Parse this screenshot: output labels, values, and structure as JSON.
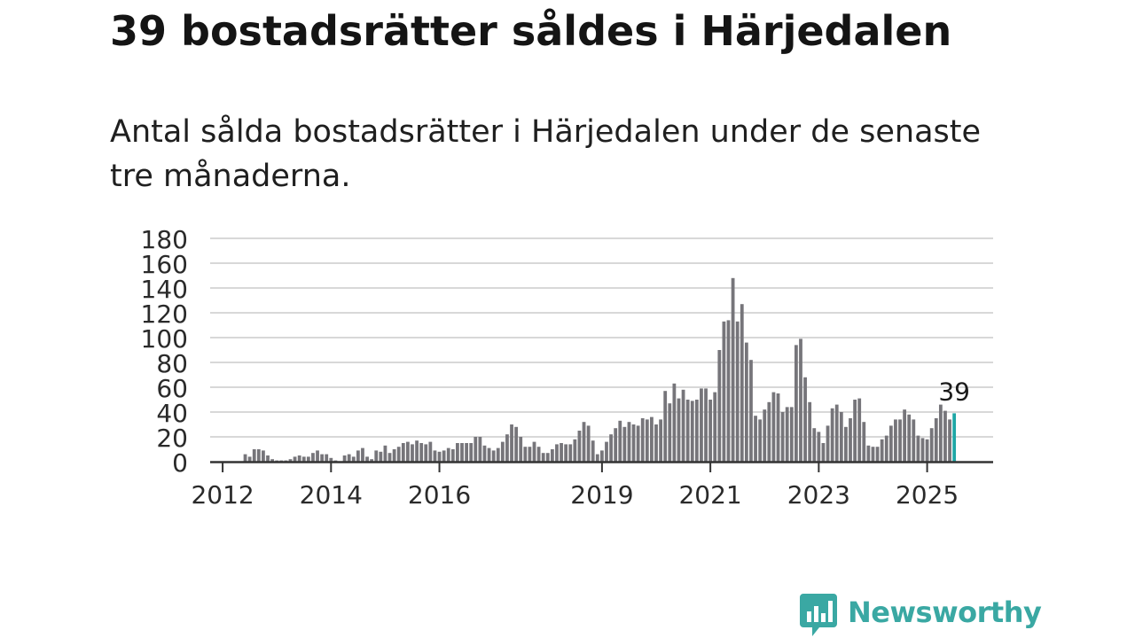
{
  "title": "39 bostadsrätter såldes i Härjedalen",
  "subtitle": "Antal sålda bostadsrätter i Härjedalen under de senaste tre månaderna.",
  "logo": {
    "text": "Newsworthy",
    "icon": "newsworthy-logo-icon"
  },
  "colors": {
    "bar": "#76757a",
    "highlight": "#1ea7a6",
    "grid": "#d8d8d8",
    "axis": "#333333",
    "brand": "#3aa8a3"
  },
  "chart_data": {
    "type": "bar",
    "ylim": [
      0,
      180
    ],
    "yticks": [
      "0",
      "20",
      "40",
      "60",
      "80",
      "100",
      "120",
      "140",
      "160",
      "180"
    ],
    "xticks": [
      "2012",
      "2014",
      "2016",
      "2019",
      "2021",
      "2023",
      "2025"
    ],
    "grid": true,
    "start": "2011-11",
    "highlight_label": "39",
    "values": [
      0,
      0,
      0,
      0,
      0,
      0,
      0,
      6,
      4,
      10,
      10,
      9,
      5,
      2,
      1,
      1,
      1,
      2,
      4,
      5,
      4,
      4,
      7,
      9,
      6,
      6,
      3,
      1,
      0,
      5,
      6,
      4,
      9,
      11,
      4,
      2,
      9,
      8,
      13,
      7,
      10,
      12,
      15,
      16,
      14,
      17,
      15,
      14,
      16,
      9,
      8,
      9,
      11,
      10,
      15,
      15,
      15,
      15,
      20,
      20,
      13,
      11,
      9,
      11,
      16,
      22,
      30,
      28,
      20,
      12,
      12,
      16,
      12,
      7,
      7,
      10,
      14,
      15,
      14,
      14,
      18,
      25,
      32,
      29,
      17,
      6,
      9,
      16,
      22,
      27,
      33,
      28,
      32,
      30,
      29,
      35,
      34,
      36,
      30,
      34,
      57,
      47,
      63,
      51,
      58,
      50,
      49,
      50,
      59,
      59,
      50,
      56,
      90,
      113,
      114,
      148,
      113,
      127,
      96,
      82,
      37,
      34,
      42,
      48,
      56,
      55,
      40,
      44,
      44,
      94,
      99,
      68,
      48,
      27,
      24,
      15,
      29,
      43,
      46,
      40,
      28,
      35,
      50,
      51,
      32,
      13,
      12,
      12,
      18,
      21,
      29,
      34,
      34,
      42,
      38,
      34,
      21,
      19,
      18,
      27,
      35,
      46,
      41,
      34,
      39
    ]
  }
}
